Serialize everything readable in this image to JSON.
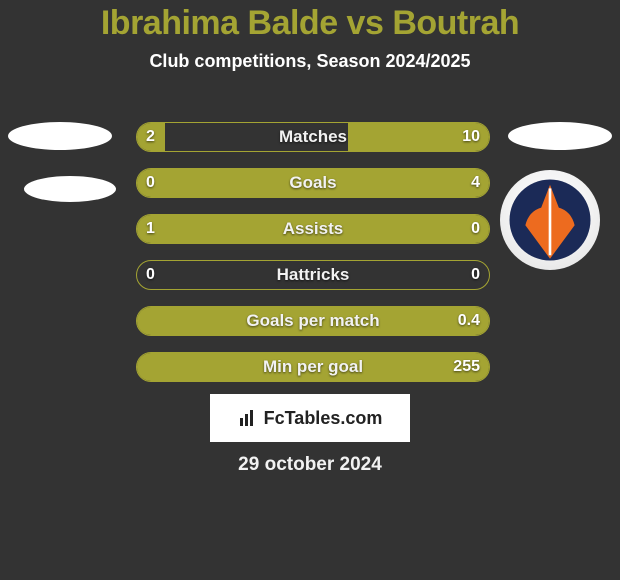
{
  "title": "Ibrahima Balde vs Boutrah",
  "subtitle": "Club competitions, Season 2024/2025",
  "date": "29 october 2024",
  "brand": "FcTables.com",
  "colors": {
    "accent": "#a4a433",
    "background": "#333333",
    "text": "#ffffff"
  },
  "rows": [
    {
      "label": "Matches",
      "left": "2",
      "right": "10",
      "left_fill_pct": 8,
      "right_fill_pct": 40
    },
    {
      "label": "Goals",
      "left": "0",
      "right": "4",
      "left_fill_pct": 0,
      "right_fill_pct": 100
    },
    {
      "label": "Assists",
      "left": "1",
      "right": "0",
      "left_fill_pct": 100,
      "right_fill_pct": 0
    },
    {
      "label": "Hattricks",
      "left": "0",
      "right": "0",
      "left_fill_pct": 0,
      "right_fill_pct": 0
    },
    {
      "label": "Goals per match",
      "left": " ",
      "right": "0.4",
      "left_fill_pct": 0,
      "right_fill_pct": 100
    },
    {
      "label": "Min per goal",
      "left": " ",
      "right": "255",
      "left_fill_pct": 0,
      "right_fill_pct": 100
    }
  ],
  "club_logo": {
    "bg": "#1b2a57",
    "shape": "#ed6b1f"
  }
}
